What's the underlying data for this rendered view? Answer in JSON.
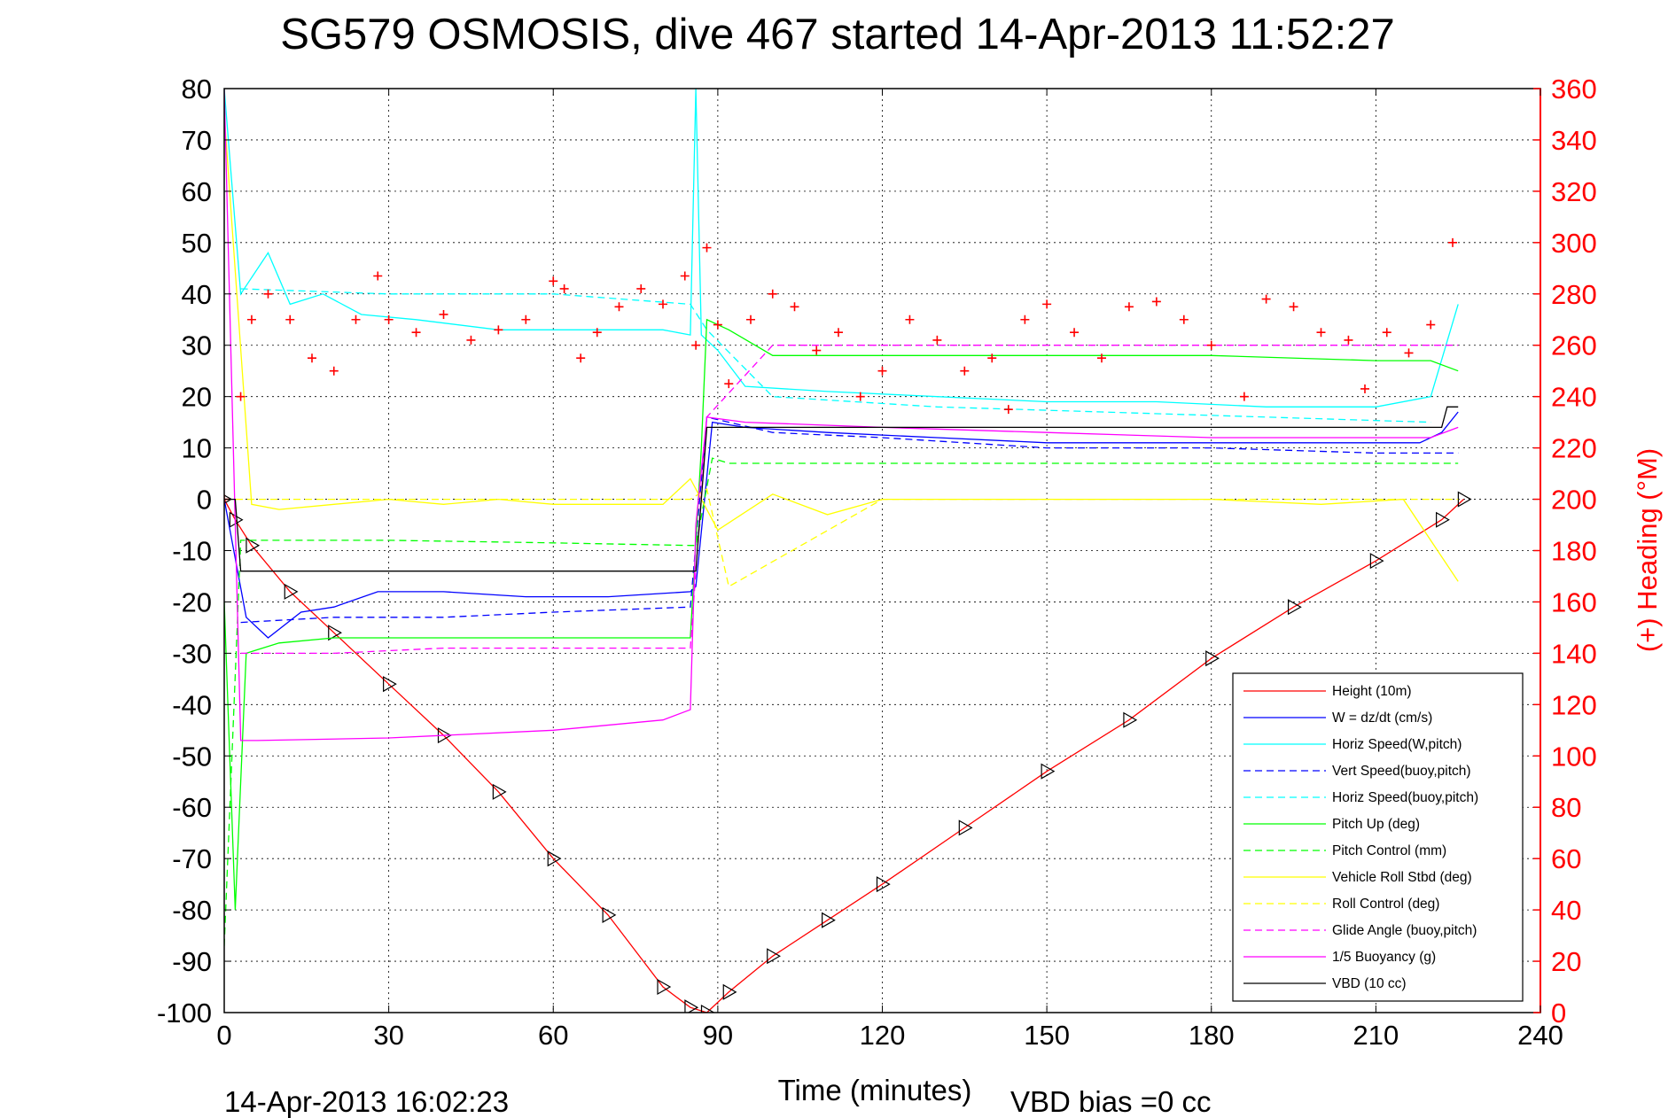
{
  "chart_data": {
    "type": "line",
    "title": "SG579 OSMOSIS, dive 467 started 14-Apr-2013 11:52:27",
    "xlabel": "Time (minutes)",
    "ylabel_left": "",
    "ylabel_right": "(+) Heading (°M)",
    "xlim": [
      0,
      240
    ],
    "ylim": [
      -100,
      80
    ],
    "ylim_right": [
      0,
      360
    ],
    "xticks": [
      0,
      30,
      60,
      90,
      120,
      150,
      180,
      210,
      240
    ],
    "yticks": [
      80,
      70,
      60,
      50,
      40,
      30,
      20,
      10,
      0,
      -10,
      -20,
      -30,
      -40,
      -50,
      -60,
      -70,
      -80,
      -90,
      -100
    ],
    "yticks_right": [
      360,
      340,
      320,
      300,
      280,
      260,
      240,
      220,
      200,
      180,
      160,
      140,
      120,
      100,
      80,
      60,
      40,
      20,
      0
    ],
    "grid": true,
    "legend_position": "bottom-right",
    "footer_left": "14-Apr-2013 16:02:23",
    "footer_right": "VBD bias =0 cc",
    "colors": {
      "height": "#ff0000",
      "w": "#0000ff",
      "horiz_speed": "#00ffff",
      "pitch": "#00ff00",
      "roll": "#ffff00",
      "glide": "#ff00ff",
      "vbd": "#000000",
      "heading": "#ff0000"
    },
    "series": [
      {
        "name": "Height (10m)",
        "color": "#ff0000",
        "style": "solid",
        "marker": "triangle",
        "x": [
          0,
          2,
          5,
          12,
          20,
          30,
          40,
          50,
          60,
          70,
          80,
          85,
          88,
          92,
          100,
          110,
          120,
          135,
          150,
          165,
          180,
          195,
          210,
          222,
          226
        ],
        "y": [
          0,
          -4,
          -9,
          -18,
          -26,
          -36,
          -46,
          -57,
          -70,
          -81,
          -95,
          -99,
          -100,
          -96,
          -89,
          -82,
          -75,
          -64,
          -53,
          -43,
          -31,
          -21,
          -12,
          -4,
          0
        ]
      },
      {
        "name": "W = dz/dt (cm/s)",
        "color": "#0000ff",
        "style": "solid",
        "x": [
          0,
          4,
          8,
          14,
          20,
          28,
          40,
          55,
          70,
          85,
          86,
          89,
          95,
          110,
          130,
          150,
          170,
          190,
          210,
          218,
          222,
          225
        ],
        "y": [
          0,
          -23,
          -27,
          -22,
          -21,
          -18,
          -18,
          -19,
          -19,
          -18,
          -17,
          15,
          14,
          13,
          12,
          11,
          11,
          11,
          11,
          11,
          13,
          17
        ]
      },
      {
        "name": "Horiz Speed(W,pitch)",
        "color": "#00ffff",
        "style": "solid",
        "x": [
          0,
          3,
          8,
          12,
          18,
          25,
          35,
          50,
          65,
          80,
          85,
          86,
          87,
          90,
          95,
          110,
          130,
          150,
          170,
          190,
          210,
          220,
          225
        ],
        "y": [
          80,
          40,
          48,
          38,
          40,
          36,
          35,
          33,
          33,
          33,
          32,
          80,
          32,
          29,
          22,
          21,
          20,
          19,
          19,
          18,
          18,
          20,
          38
        ]
      },
      {
        "name": "Vert Speed(buoy,pitch)",
        "color": "#0000ff",
        "style": "dashed",
        "x": [
          3,
          20,
          40,
          60,
          85,
          88,
          100,
          120,
          150,
          180,
          210,
          225
        ],
        "y": [
          -24,
          -23,
          -23,
          -22,
          -21,
          16,
          13,
          12,
          10,
          10,
          9,
          9
        ]
      },
      {
        "name": "Horiz Speed(buoy,pitch)",
        "color": "#00ffff",
        "style": "dashed",
        "x": [
          3,
          30,
          60,
          85,
          88,
          100,
          130,
          160,
          190,
          220
        ],
        "y": [
          41,
          40,
          40,
          38,
          33,
          20,
          18,
          17,
          16,
          15
        ]
      },
      {
        "name": "Pitch Up (deg)",
        "color": "#00ff00",
        "style": "solid",
        "x": [
          0,
          2,
          4,
          10,
          20,
          40,
          60,
          80,
          85,
          87,
          88,
          92,
          100,
          120,
          150,
          180,
          210,
          220,
          225
        ],
        "y": [
          -20,
          -80,
          -30,
          -28,
          -27,
          -27,
          -27,
          -27,
          -27,
          10,
          35,
          33,
          28,
          28,
          28,
          28,
          27,
          27,
          25
        ]
      },
      {
        "name": "Pitch Control (mm)",
        "color": "#00ff00",
        "style": "dashed",
        "x": [
          0,
          3,
          5,
          30,
          60,
          85,
          86,
          89,
          92,
          120,
          150,
          180,
          210,
          225
        ],
        "y": [
          -87,
          -8,
          -8,
          -8,
          -8.5,
          -9,
          -9,
          8,
          7,
          7,
          7,
          7,
          7,
          7
        ]
      },
      {
        "name": "Vehicle Roll Stbd (deg)",
        "color": "#ffff00",
        "style": "solid",
        "x": [
          0,
          5,
          10,
          20,
          30,
          40,
          50,
          60,
          70,
          80,
          85,
          90,
          100,
          110,
          120,
          140,
          160,
          180,
          200,
          215,
          225
        ],
        "y": [
          75,
          -1,
          -2,
          -1,
          0,
          -1,
          0,
          -1,
          -1,
          -1,
          4,
          -6,
          1,
          -3,
          0,
          0,
          0,
          0,
          -1,
          0,
          -16
        ]
      },
      {
        "name": "Roll Control (deg)",
        "color": "#ffff00",
        "style": "dashed",
        "x": [
          0,
          5,
          60,
          85,
          88,
          92,
          120,
          160,
          200,
          225
        ],
        "y": [
          0,
          0,
          0,
          0,
          2,
          -17,
          0,
          0,
          0,
          0
        ]
      },
      {
        "name": "Glide Angle (buoy,pitch)",
        "color": "#ff00ff",
        "style": "dashed",
        "x": [
          3,
          20,
          40,
          60,
          85,
          88,
          100,
          130,
          160,
          190,
          220,
          225
        ],
        "y": [
          -30,
          -30,
          -29,
          -29,
          -29,
          16,
          30,
          30,
          30,
          30,
          30,
          30
        ]
      },
      {
        "name": "1/5 Buoyancy (g)",
        "color": "#ff00ff",
        "style": "solid",
        "x": [
          0,
          3,
          6,
          30,
          60,
          80,
          85,
          86,
          88,
          95,
          120,
          150,
          180,
          210,
          220,
          225
        ],
        "y": [
          80,
          -47,
          -47,
          -46.5,
          -45,
          -43,
          -41,
          -5,
          16,
          15,
          14,
          13,
          12,
          12,
          12,
          14
        ]
      },
      {
        "name": "VBD (10 cc)",
        "color": "#000000",
        "style": "solid",
        "x": [
          0,
          2,
          3,
          30,
          60,
          85,
          86,
          88,
          90,
          120,
          150,
          180,
          210,
          220,
          222,
          223,
          225
        ],
        "y": [
          0,
          0,
          -14,
          -14,
          -14,
          -14,
          -14,
          14,
          14,
          14,
          14,
          14,
          14,
          14,
          14,
          18,
          18
        ]
      },
      {
        "name": "(+) Heading (°M)",
        "color": "#ff0000",
        "style": "marker",
        "axis": "right",
        "x": [
          0,
          3,
          5,
          8,
          12,
          16,
          20,
          24,
          28,
          30,
          35,
          40,
          45,
          50,
          55,
          60,
          62,
          65,
          68,
          72,
          76,
          80,
          84,
          86,
          88,
          90,
          92,
          96,
          100,
          104,
          108,
          112,
          116,
          120,
          125,
          130,
          135,
          140,
          143,
          146,
          150,
          155,
          160,
          165,
          170,
          175,
          180,
          186,
          190,
          195,
          200,
          205,
          208,
          212,
          216,
          220,
          224
        ],
        "y": [
          200,
          240,
          270,
          280,
          270,
          255,
          250,
          270,
          287,
          270,
          265,
          272,
          262,
          266,
          270,
          285,
          282,
          255,
          265,
          275,
          282,
          276,
          287,
          260,
          298,
          268,
          245,
          270,
          280,
          275,
          258,
          265,
          240,
          250,
          270,
          262,
          250,
          255,
          235,
          270,
          276,
          265,
          255,
          275,
          277,
          270,
          260,
          240,
          278,
          275,
          265,
          262,
          243,
          265,
          257,
          268,
          300
        ]
      }
    ]
  }
}
